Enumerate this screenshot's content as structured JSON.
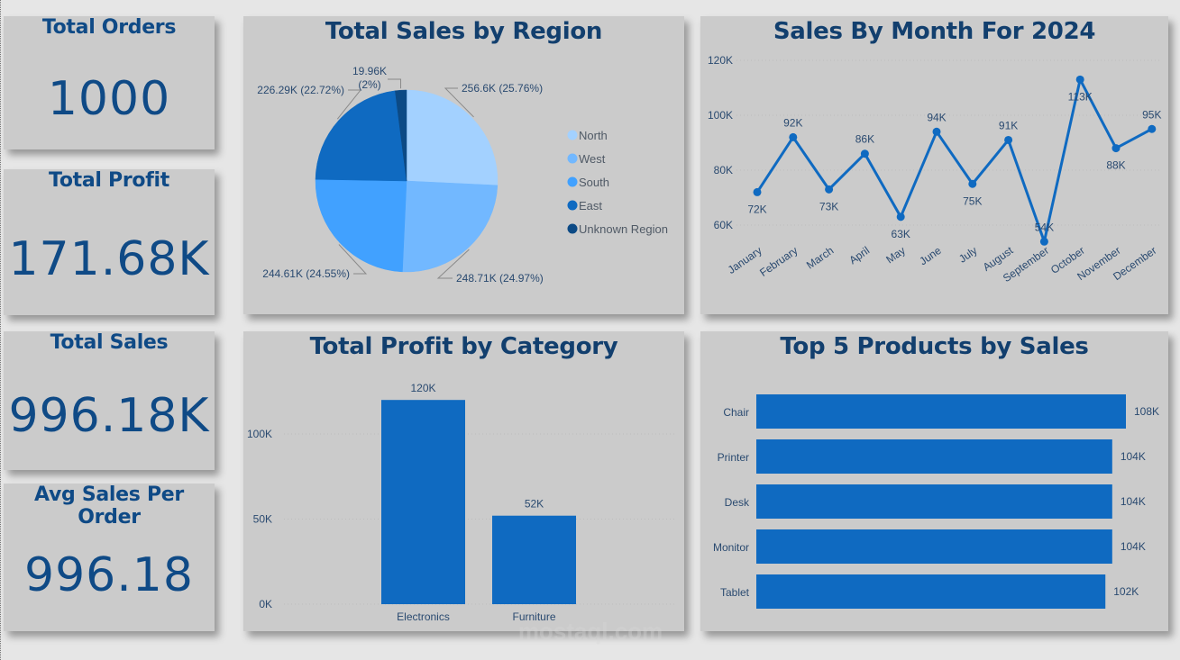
{
  "kpis": [
    {
      "title": "Total Orders",
      "value": "1000"
    },
    {
      "title": "Total Profit",
      "value": "171.68K"
    },
    {
      "title": "Total Sales",
      "value": "996.18K"
    },
    {
      "title": "Avg Sales Per Order",
      "value": "996.18"
    }
  ],
  "colors": {
    "title": "#123f6e",
    "kpi": "#0f4a86",
    "bar": "#0f6ac1",
    "card": "#cbcbcb",
    "background": "#e6e6e6",
    "pie": [
      "#a3d1ff",
      "#72b8ff",
      "#41a1ff",
      "#0f6ac1",
      "#0c4a85"
    ]
  },
  "watermark": {
    "text": "mostaql.com"
  },
  "chart_data": [
    {
      "type": "pie",
      "title": "Total Sales by Region",
      "categories": [
        "North",
        "West",
        "South",
        "East",
        "Unknown Region"
      ],
      "values": [
        256.6,
        248.71,
        244.61,
        226.29,
        19.96
      ],
      "unit": "K",
      "percentages": [
        25.76,
        24.97,
        24.55,
        22.72,
        2
      ],
      "data_labels": [
        "256.6K (25.76%)",
        "248.71K (24.97%)",
        "244.61K (24.55%)",
        "226.29K (22.72%)",
        "19.96K (2%)"
      ],
      "legend": [
        "North",
        "West",
        "South",
        "East",
        "Unknown Region"
      ],
      "legend_position": "right"
    },
    {
      "type": "line",
      "title": "Sales By Month For 2024",
      "categories": [
        "January",
        "February",
        "March",
        "April",
        "May",
        "June",
        "July",
        "August",
        "September",
        "October",
        "November",
        "December"
      ],
      "values": [
        72,
        92,
        73,
        86,
        63,
        94,
        75,
        91,
        54,
        113,
        88,
        95
      ],
      "data_labels": [
        "72K",
        "92K",
        "73K",
        "86K",
        "63K",
        "94K",
        "75K",
        "91K",
        "54K",
        "113K",
        "88K",
        "95K"
      ],
      "y_ticks": [
        "60K",
        "80K",
        "100K",
        "120K"
      ],
      "ylim": [
        55,
        120
      ],
      "grid": true,
      "xlabel": "",
      "ylabel": ""
    },
    {
      "type": "bar",
      "title": "Total Profit by Category",
      "categories": [
        "Electronics",
        "Furniture"
      ],
      "values": [
        120,
        52
      ],
      "data_labels": [
        "120K",
        "52K"
      ],
      "y_ticks": [
        "0K",
        "50K",
        "100K"
      ],
      "ylim": [
        0,
        120
      ],
      "grid": true,
      "xlabel": "",
      "ylabel": ""
    },
    {
      "type": "bar",
      "orientation": "horizontal",
      "title": "Top 5 Products by Sales",
      "categories": [
        "Chair",
        "Printer",
        "Desk",
        "Monitor",
        "Tablet"
      ],
      "values": [
        108,
        104,
        104,
        104,
        102
      ],
      "data_labels": [
        "108K",
        "104K",
        "104K",
        "104K",
        "102K"
      ],
      "xlabel": "",
      "ylabel": ""
    }
  ]
}
